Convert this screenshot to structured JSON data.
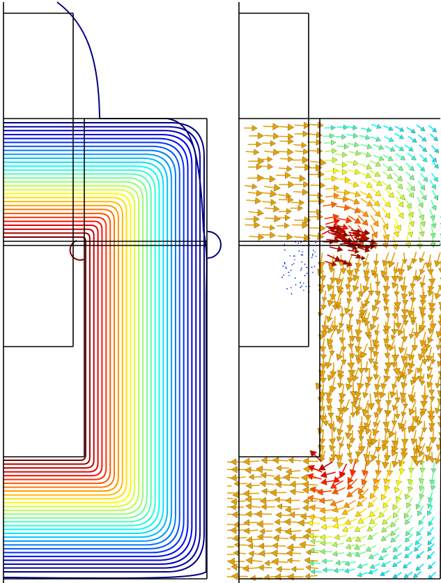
{
  "figure": {
    "left_panel": {
      "kind": "contour-lines",
      "contour_count": 30,
      "colormap": "jet"
    },
    "right_panel": {
      "kind": "vector-arrows",
      "arrow_color_main": "#e3a20a",
      "colormap": "jet"
    }
  },
  "colors": {
    "background": "#ffffff",
    "outline": "#000000",
    "jet_low": "#00008f",
    "jet_high": "#800000"
  }
}
